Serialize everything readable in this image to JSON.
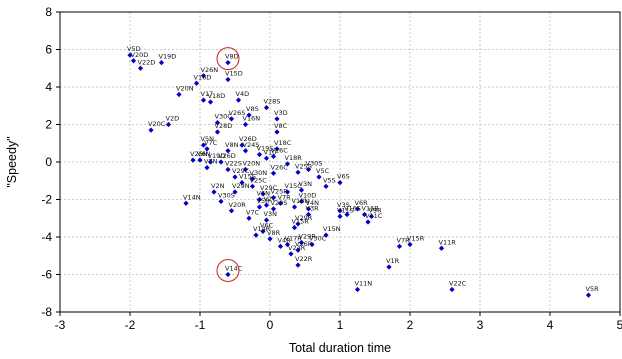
{
  "chart_data": {
    "type": "scatter",
    "title": "",
    "xlabel": "Total duration time",
    "ylabel": "\"Speedy\"",
    "xlim": [
      -3,
      5
    ],
    "ylim": [
      -8,
      8
    ],
    "xticks": [
      -3,
      -2,
      -1,
      0,
      1,
      2,
      3,
      4,
      5
    ],
    "yticks": [
      -8,
      -6,
      -4,
      -2,
      0,
      2,
      4,
      6,
      8
    ],
    "grid": true,
    "marker_color": "#0000cc",
    "highlight_color": "#d02020",
    "highlighted": [
      "V8D",
      "V14C"
    ],
    "points": [
      {
        "label": "V5D",
        "x": -2.0,
        "y": 5.7
      },
      {
        "label": "V20D",
        "x": -1.95,
        "y": 5.4
      },
      {
        "label": "V22D",
        "x": -1.85,
        "y": 5.0
      },
      {
        "label": "V19D",
        "x": -1.55,
        "y": 5.3
      },
      {
        "label": "V8D",
        "x": -0.6,
        "y": 5.3
      },
      {
        "label": "V15D",
        "x": -0.6,
        "y": 4.4
      },
      {
        "label": "V26N",
        "x": -0.95,
        "y": 4.6
      },
      {
        "label": "V16D",
        "x": -1.05,
        "y": 4.2
      },
      {
        "label": "V20N",
        "x": -1.3,
        "y": 3.6
      },
      {
        "label": "V17",
        "x": -0.95,
        "y": 3.3
      },
      {
        "label": "V18D",
        "x": -0.85,
        "y": 3.2
      },
      {
        "label": "V4D",
        "x": -0.45,
        "y": 3.3
      },
      {
        "label": "V28S",
        "x": -0.05,
        "y": 2.9
      },
      {
        "label": "V8S",
        "x": -0.3,
        "y": 2.5
      },
      {
        "label": "V3D",
        "x": 0.1,
        "y": 2.3
      },
      {
        "label": "V26S",
        "x": -0.55,
        "y": 2.3
      },
      {
        "label": "V30C",
        "x": -0.75,
        "y": 2.1
      },
      {
        "label": "V16N",
        "x": -0.35,
        "y": 2.0
      },
      {
        "label": "V8C",
        "x": 0.1,
        "y": 1.6
      },
      {
        "label": "V20C",
        "x": -1.7,
        "y": 1.7
      },
      {
        "label": "V2D",
        "x": -1.45,
        "y": 2.0
      },
      {
        "label": "V28D",
        "x": -0.75,
        "y": 1.6
      },
      {
        "label": "V5N",
        "x": -0.95,
        "y": 0.9
      },
      {
        "label": "V7C",
        "x": -0.9,
        "y": 0.7
      },
      {
        "label": "V26D",
        "x": -0.4,
        "y": 0.9
      },
      {
        "label": "V24S",
        "x": -0.35,
        "y": 0.6
      },
      {
        "label": "V8N",
        "x": -0.6,
        "y": 0.6
      },
      {
        "label": "V19S",
        "x": -0.15,
        "y": 0.4
      },
      {
        "label": "V18C",
        "x": 0.1,
        "y": 0.7
      },
      {
        "label": "V16C",
        "x": 0.05,
        "y": 0.3
      },
      {
        "label": "V10",
        "x": -0.05,
        "y": 0.2
      },
      {
        "label": "V25N",
        "x": -1.1,
        "y": 0.1
      },
      {
        "label": "V6N",
        "x": -1.0,
        "y": 0.1
      },
      {
        "label": "V19D",
        "x": -0.85,
        "y": 0.0
      },
      {
        "label": "V26D",
        "x": -0.7,
        "y": 0.0
      },
      {
        "label": "V7N",
        "x": -0.9,
        "y": -0.3
      },
      {
        "label": "V22S",
        "x": -0.6,
        "y": -0.4
      },
      {
        "label": "V20N",
        "x": -0.35,
        "y": -0.4
      },
      {
        "label": "V18R",
        "x": 0.25,
        "y": -0.1
      },
      {
        "label": "V30S",
        "x": 0.55,
        "y": -0.4
      },
      {
        "label": "V25S",
        "x": 0.4,
        "y": -0.55
      },
      {
        "label": "V26C",
        "x": 0.05,
        "y": -0.6
      },
      {
        "label": "V5C",
        "x": 0.7,
        "y": -0.8
      },
      {
        "label": "V6S",
        "x": 1.0,
        "y": -1.1
      },
      {
        "label": "V5S",
        "x": 0.8,
        "y": -1.3
      },
      {
        "label": "V29C",
        "x": -0.5,
        "y": -0.8
      },
      {
        "label": "V30N",
        "x": -0.25,
        "y": -0.9
      },
      {
        "label": "V15S",
        "x": -0.4,
        "y": -1.1
      },
      {
        "label": "V25C",
        "x": -0.25,
        "y": -1.3
      },
      {
        "label": "V2N",
        "x": -0.8,
        "y": -1.6
      },
      {
        "label": "V29N",
        "x": -0.5,
        "y": -1.6
      },
      {
        "label": "V14N",
        "x": -1.2,
        "y": -2.2
      },
      {
        "label": "V30S",
        "x": -0.7,
        "y": -2.1
      },
      {
        "label": "V20R",
        "x": -0.55,
        "y": -2.6
      },
      {
        "label": "V15C",
        "x": 0.25,
        "y": -1.6
      },
      {
        "label": "V29C",
        "x": -0.1,
        "y": -1.7
      },
      {
        "label": "V25R",
        "x": 0.05,
        "y": -1.9
      },
      {
        "label": "V2C",
        "x": -0.05,
        "y": -2.3
      },
      {
        "label": "V6N",
        "x": -0.15,
        "y": -2.0
      },
      {
        "label": "V5R",
        "x": -0.15,
        "y": -2.4
      },
      {
        "label": "V7R",
        "x": 0.15,
        "y": -2.2
      },
      {
        "label": "V3N",
        "x": 0.45,
        "y": -1.5
      },
      {
        "label": "V10D",
        "x": 0.45,
        "y": -2.1
      },
      {
        "label": "V18N",
        "x": 0.35,
        "y": -2.4
      },
      {
        "label": "V20S",
        "x": 0.05,
        "y": -2.5
      },
      {
        "label": "V7C",
        "x": -0.3,
        "y": -3.0
      },
      {
        "label": "V3N",
        "x": -0.05,
        "y": -3.1
      },
      {
        "label": "V14R",
        "x": -0.2,
        "y": -3.9
      },
      {
        "label": "V3R",
        "x": 0.55,
        "y": -2.8
      },
      {
        "label": "V29R",
        "x": 0.4,
        "y": -3.3
      },
      {
        "label": "V15R",
        "x": 0.35,
        "y": -3.5
      },
      {
        "label": "V4N",
        "x": 0.55,
        "y": -2.5
      },
      {
        "label": "V6C",
        "x": -0.1,
        "y": -3.7
      },
      {
        "label": "V8R",
        "x": 0.0,
        "y": -4.1
      },
      {
        "label": "V4R",
        "x": 0.15,
        "y": -4.5
      },
      {
        "label": "V17R",
        "x": 0.25,
        "y": -4.4
      },
      {
        "label": "V24R",
        "x": 0.3,
        "y": -4.9
      },
      {
        "label": "V26R",
        "x": 0.4,
        "y": -4.7
      },
      {
        "label": "V29R",
        "x": 0.45,
        "y": -4.3
      },
      {
        "label": "V22R",
        "x": 0.4,
        "y": -5.5
      },
      {
        "label": "V30C",
        "x": 0.6,
        "y": -4.4
      },
      {
        "label": "V15N",
        "x": 0.8,
        "y": -3.9
      },
      {
        "label": "V3S",
        "x": 1.0,
        "y": -2.6
      },
      {
        "label": "V11S",
        "x": 1.0,
        "y": -2.9
      },
      {
        "label": "V16S",
        "x": 1.1,
        "y": -2.8
      },
      {
        "label": "V6R",
        "x": 1.25,
        "y": -2.5
      },
      {
        "label": "V16R",
        "x": 1.35,
        "y": -2.8
      },
      {
        "label": "V9R",
        "x": 1.45,
        "y": -2.9
      },
      {
        "label": "V11C",
        "x": 1.4,
        "y": -3.2
      },
      {
        "label": "V7R",
        "x": 1.85,
        "y": -4.5
      },
      {
        "label": "V15R",
        "x": 2.0,
        "y": -4.4
      },
      {
        "label": "V11R",
        "x": 2.45,
        "y": -4.6
      },
      {
        "label": "V1R",
        "x": 1.7,
        "y": -5.6
      },
      {
        "label": "V11N",
        "x": 1.25,
        "y": -6.8
      },
      {
        "label": "V22C",
        "x": 2.6,
        "y": -6.8
      },
      {
        "label": "V14C",
        "x": -0.6,
        "y": -6.0
      },
      {
        "label": "V5R",
        "x": 4.55,
        "y": -7.1
      }
    ]
  }
}
